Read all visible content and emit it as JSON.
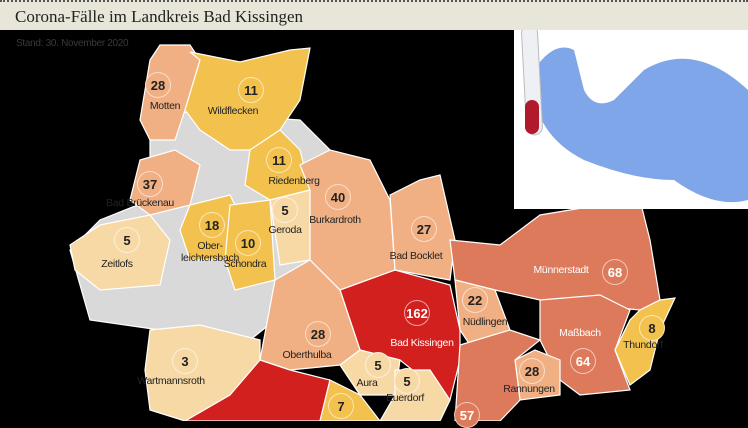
{
  "title": "Corona-Fälle im Landkreis Bad Kissingen",
  "stand": "Stand: 30. November 2020",
  "colors": {
    "low": "#f7d9a6",
    "mid_low": "#f3c24e",
    "mid": "#f1b083",
    "high": "#dd7a5c",
    "highest": "#d2201f"
  },
  "photo": {
    "subject": "gloved-hand-holding-blood-test-tube"
  },
  "municipalities": [
    {
      "name": "Motten",
      "cases": "28"
    },
    {
      "name": "Wildflecken",
      "cases": "11"
    },
    {
      "name": "Riedenberg",
      "cases": "11"
    },
    {
      "name": "Bad Brückenau",
      "cases": "37"
    },
    {
      "name": "Burkardroth",
      "cases": "40"
    },
    {
      "name": "Geroda",
      "cases": "5"
    },
    {
      "name": "Ober-\nleichtersbach",
      "cases": "18"
    },
    {
      "name": "Schondra",
      "cases": "10"
    },
    {
      "name": "Zeitlofs",
      "cases": "5"
    },
    {
      "name": "Bad Bocklet",
      "cases": "27"
    },
    {
      "name": "Münnerstadt",
      "cases": "68"
    },
    {
      "name": "Bad Kissingen",
      "cases": "162"
    },
    {
      "name": "Nüdlingen",
      "cases": "22"
    },
    {
      "name": "Oberthulba",
      "cases": "28"
    },
    {
      "name": "Thundorf",
      "cases": "8"
    },
    {
      "name": "Maßbach",
      "cases": "64"
    },
    {
      "name": "Wartmannsroth",
      "cases": "3"
    },
    {
      "name": "Aura",
      "cases": "5"
    },
    {
      "name": "Euerdorf",
      "cases": "5"
    },
    {
      "name": "",
      "cases": "7"
    },
    {
      "name": "Rannungen",
      "cases": "28"
    },
    {
      "name": "",
      "cases": "57"
    }
  ]
}
